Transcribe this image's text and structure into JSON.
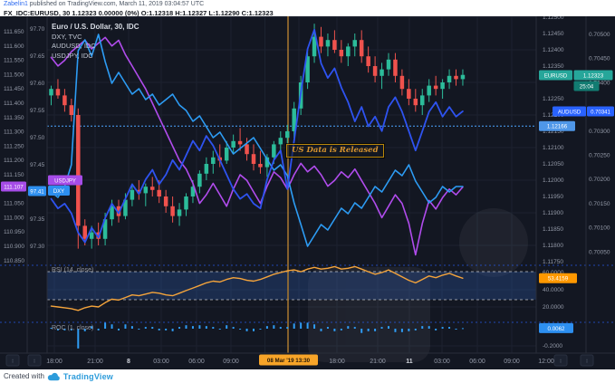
{
  "header": {
    "author": "Zabelin1",
    "published_line": " published on TradingView.com, March 11, 2019 03:04:57 UTC",
    "symbol_line": "FX_IDC:EURUSD, 30  1.12323 0.00000 (0%)  O:1.12318  H:1.12327  L:1.12290  C:1.12323"
  },
  "legend": {
    "main": "Euro / U.S. Dollar, 30, IDC",
    "overlays": [
      "DXY, TVC",
      "AUDUSD, IDC",
      "USDJPY, IDC"
    ]
  },
  "annotation": {
    "text": "US Data is Released"
  },
  "labels": {
    "eurusd_tag": "EURUSD",
    "eurusd_price": "1.12323",
    "countdown": "25:04",
    "audusd_tag": "AUDUSD",
    "audusd_price": "0.70341",
    "usdjpy_tag": "USDJPY",
    "usdjpy_price": "111.107",
    "dxy_tag": "DXY",
    "dxy_price": "97.41",
    "price_level": "1.12166",
    "rsi_label": "RSI (14, close)",
    "rsi_value": "53.4159",
    "roc_label": "ROC (1, close)",
    "roc_value": "0.0062",
    "event_time": "08 Mar '19   13:30"
  },
  "axes": {
    "usdjpy_ticks": [
      "111.650",
      "111.600",
      "111.550",
      "111.500",
      "111.450",
      "111.400",
      "111.350",
      "111.300",
      "111.250",
      "111.200",
      "111.150",
      "111.050",
      "111.000",
      "110.950",
      "110.900",
      "110.850"
    ],
    "dxy_ticks": [
      "97.70",
      "97.65",
      "97.60",
      "97.55",
      "97.50",
      "97.45",
      "97.40",
      "97.35",
      "97.30"
    ],
    "eurusd_ticks": [
      "1.12500",
      "1.12450",
      "1.12400",
      "1.12350",
      "1.12250",
      "1.12200",
      "1.12150",
      "1.12100",
      "1.12050",
      "1.12000",
      "1.11950",
      "1.11900",
      "1.11850",
      "1.11800",
      "1.11750"
    ],
    "audusd_ticks": [
      "0.70500",
      "0.70450",
      "0.70400",
      "0.70300",
      "0.70250",
      "0.70200",
      "0.70150",
      "0.70100",
      "0.70050"
    ],
    "rsi_ticks": [
      "60.0000",
      "40.0000",
      "20.0000"
    ],
    "roc_ticks": [
      "-0.2000"
    ]
  },
  "time_axis": {
    "ticks": [
      {
        "label": "18:00",
        "emph": false
      },
      {
        "label": "21:00",
        "emph": false
      },
      {
        "label": "8",
        "emph": true
      },
      {
        "label": "03:00",
        "emph": false
      },
      {
        "label": "06:00",
        "emph": false
      },
      {
        "label": "09:00",
        "emph": false
      },
      {
        "label": "18:00",
        "emph": false
      },
      {
        "label": "21:00",
        "emph": false
      },
      {
        "label": "11",
        "emph": true
      },
      {
        "label": "03:00",
        "emph": false
      },
      {
        "label": "06:00",
        "emph": false
      },
      {
        "label": "09:00",
        "emph": false
      },
      {
        "label": "12:00",
        "emph": false
      }
    ]
  },
  "footer": {
    "created_with": "Created with",
    "brand": "TradingView"
  },
  "colors": {
    "chart_bg": "#131722",
    "grid": "#1c2230",
    "axis_border": "#2a2e39",
    "tick_text": "#949aa8",
    "tick_text_emph": "#d1d4dc",
    "candle_up": "#2cbc9a",
    "candle_down": "#f0524d",
    "dxy_line": "#2d9cf4",
    "usdjpy_line": "#b14ced",
    "audusd_line": "#2e53f0",
    "eurusd_label_bg": "#26a69a",
    "countdown_bg": "#127c72",
    "audusd_label_bg": "#2962ff",
    "usdjpy_label_bg": "#a64ce8",
    "dxy_label_bg": "#2d8ff0",
    "price_level_bg": "#4f97e8",
    "rsi_line": "#f5a43b",
    "rsi_label_bg": "#ff9800",
    "roc_bar": "#2f9df5",
    "roc_label_bg": "#2d8ff0",
    "event_line": "#a9792f",
    "event_chip_bg": "#f7a428",
    "separator": "#2962ff",
    "band_fill": "rgba(44,84,158,0.35)",
    "pane_label": "#9598a1"
  },
  "chart_data": {
    "type": "candlestick+lines",
    "symbol": "FX_IDC:EURUSD",
    "timeframe": "30m",
    "event": {
      "text": "US Data is Released",
      "time": "08 Mar '19 13:30",
      "bar_index": 35
    },
    "price_level_line": 1.12166,
    "visible_ranges": {
      "EURUSD": [
        1.11739,
        1.12503
      ],
      "DXY": [
        97.265,
        97.723
      ],
      "USDJPY": [
        110.834,
        111.704
      ],
      "AUDUSD": [
        0.70022,
        0.70538
      ],
      "RSI": [
        2.1,
        68.4
      ],
      "ROC": [
        -0.284,
        0.074
      ]
    },
    "candles_ohlc": [
      [
        1.1226,
        1.1229,
        1.1223,
        1.1228
      ],
      [
        1.1228,
        1.1231,
        1.1225,
        1.1226
      ],
      [
        1.1226,
        1.1228,
        1.1221,
        1.1223
      ],
      [
        1.1223,
        1.1225,
        1.1218,
        1.122
      ],
      [
        1.122,
        1.1222,
        1.1179,
        1.1186
      ],
      [
        1.1186,
        1.1188,
        1.118,
        1.1182
      ],
      [
        1.1182,
        1.1186,
        1.1179,
        1.1184
      ],
      [
        1.1184,
        1.1187,
        1.118,
        1.1182
      ],
      [
        1.1182,
        1.119,
        1.118,
        1.1188
      ],
      [
        1.1188,
        1.1194,
        1.1186,
        1.1192
      ],
      [
        1.1192,
        1.1194,
        1.1187,
        1.1189
      ],
      [
        1.1189,
        1.1196,
        1.1188,
        1.1194
      ],
      [
        1.1194,
        1.1199,
        1.1192,
        1.1197
      ],
      [
        1.1197,
        1.12,
        1.1194,
        1.1196
      ],
      [
        1.1196,
        1.1199,
        1.1192,
        1.1198
      ],
      [
        1.1198,
        1.1201,
        1.1195,
        1.1197
      ],
      [
        1.1197,
        1.12,
        1.1193,
        1.1195
      ],
      [
        1.1195,
        1.1197,
        1.119,
        1.1192
      ],
      [
        1.1192,
        1.1195,
        1.1187,
        1.1189
      ],
      [
        1.1189,
        1.1193,
        1.1186,
        1.1191
      ],
      [
        1.1191,
        1.1196,
        1.1189,
        1.1195
      ],
      [
        1.1195,
        1.12,
        1.1193,
        1.1198
      ],
      [
        1.1198,
        1.1203,
        1.1196,
        1.1202
      ],
      [
        1.1202,
        1.1207,
        1.12,
        1.1205
      ],
      [
        1.1205,
        1.1209,
        1.1202,
        1.1207
      ],
      [
        1.1207,
        1.1211,
        1.1204,
        1.1206
      ],
      [
        1.1206,
        1.1212,
        1.1205,
        1.121
      ],
      [
        1.121,
        1.1214,
        1.1208,
        1.1212
      ],
      [
        1.1212,
        1.1216,
        1.1209,
        1.1211
      ],
      [
        1.1211,
        1.1213,
        1.1206,
        1.1208
      ],
      [
        1.1208,
        1.1211,
        1.1203,
        1.1205
      ],
      [
        1.1205,
        1.1209,
        1.1202,
        1.1204
      ],
      [
        1.1204,
        1.1208,
        1.1201,
        1.1207
      ],
      [
        1.1207,
        1.1212,
        1.1205,
        1.1211
      ],
      [
        1.1211,
        1.1215,
        1.1208,
        1.1213
      ],
      [
        1.1213,
        1.1217,
        1.1211,
        1.1215
      ],
      [
        1.1215,
        1.1224,
        1.1213,
        1.1222
      ],
      [
        1.1222,
        1.1232,
        1.122,
        1.123
      ],
      [
        1.123,
        1.124,
        1.1228,
        1.1238
      ],
      [
        1.1238,
        1.1248,
        1.1236,
        1.1244
      ],
      [
        1.1244,
        1.1247,
        1.1239,
        1.1241
      ],
      [
        1.1241,
        1.1245,
        1.1238,
        1.1243
      ],
      [
        1.1243,
        1.1246,
        1.1239,
        1.124
      ],
      [
        1.124,
        1.1243,
        1.1236,
        1.1238
      ],
      [
        1.1238,
        1.1242,
        1.1235,
        1.1241
      ],
      [
        1.1241,
        1.1245,
        1.1238,
        1.1243
      ],
      [
        1.1243,
        1.1246,
        1.1236,
        1.1238
      ],
      [
        1.1238,
        1.1241,
        1.1233,
        1.1235
      ],
      [
        1.1235,
        1.1238,
        1.123,
        1.1232
      ],
      [
        1.1232,
        1.1236,
        1.1228,
        1.1234
      ],
      [
        1.1234,
        1.1239,
        1.1232,
        1.1237
      ],
      [
        1.1237,
        1.1239,
        1.123,
        1.1232
      ],
      [
        1.1232,
        1.1234,
        1.1226,
        1.1228
      ],
      [
        1.1228,
        1.1231,
        1.1223,
        1.1225
      ],
      [
        1.1225,
        1.1228,
        1.1221,
        1.1223
      ],
      [
        1.1223,
        1.1228,
        1.122,
        1.1226
      ],
      [
        1.1226,
        1.1231,
        1.1224,
        1.1229
      ],
      [
        1.1229,
        1.1232,
        1.1226,
        1.1228
      ],
      [
        1.1228,
        1.1231,
        1.1225,
        1.123
      ],
      [
        1.123,
        1.1234,
        1.1228,
        1.1232
      ],
      [
        1.1232,
        1.1234,
        1.1229,
        1.1231
      ],
      [
        1.1231,
        1.1234,
        1.1229,
        1.12323
      ]
    ],
    "series": [
      {
        "name": "DXY",
        "values": [
          97.4,
          97.39,
          97.41,
          97.45,
          97.66,
          97.68,
          97.65,
          97.69,
          97.64,
          97.6,
          97.62,
          97.6,
          97.58,
          97.59,
          97.57,
          97.58,
          97.56,
          97.57,
          97.58,
          97.56,
          97.55,
          97.53,
          97.54,
          97.52,
          97.5,
          97.51,
          97.49,
          97.47,
          97.48,
          97.49,
          97.5,
          97.48,
          97.46,
          97.44,
          97.45,
          97.43,
          97.38,
          97.34,
          97.3,
          97.32,
          97.34,
          97.33,
          97.35,
          97.37,
          97.36,
          97.38,
          97.37,
          97.39,
          97.41,
          97.4,
          97.42,
          97.44,
          97.43,
          97.45,
          97.42,
          97.4,
          97.38,
          97.39,
          97.41,
          97.4,
          97.41,
          97.41
        ]
      },
      {
        "name": "USDJPY",
        "values": [
          111.56,
          111.53,
          111.55,
          111.58,
          111.6,
          111.62,
          111.59,
          111.61,
          111.63,
          111.6,
          111.62,
          111.57,
          111.53,
          111.49,
          111.45,
          111.4,
          111.35,
          111.3,
          111.25,
          111.2,
          111.17,
          111.12,
          111.05,
          111.08,
          111.12,
          111.08,
          111.04,
          111.1,
          111.15,
          111.13,
          111.09,
          111.05,
          111.11,
          111.16,
          111.14,
          111.1,
          111.15,
          111.19,
          111.16,
          111.18,
          111.15,
          111.11,
          111.13,
          111.16,
          111.14,
          111.17,
          111.13,
          111.09,
          111.05,
          111.0,
          111.04,
          111.08,
          111.05,
          110.98,
          110.87,
          110.98,
          111.06,
          111.03,
          111.07,
          111.1,
          111.08,
          111.107
        ]
      },
      {
        "name": "AUDUSD",
        "values": [
          0.7016,
          0.7014,
          0.7015,
          0.7013,
          0.7009,
          0.7007,
          0.701,
          0.7008,
          0.7012,
          0.7015,
          0.7013,
          0.7016,
          0.7019,
          0.7017,
          0.702,
          0.7022,
          0.7019,
          0.7021,
          0.7024,
          0.7022,
          0.7025,
          0.7028,
          0.7026,
          0.7029,
          0.7027,
          0.7024,
          0.7021,
          0.7018,
          0.7016,
          0.7017,
          0.7015,
          0.7014,
          0.702,
          0.7024,
          0.7026,
          0.7018,
          0.7028,
          0.7038,
          0.7047,
          0.7051,
          0.7044,
          0.7041,
          0.7043,
          0.7039,
          0.7036,
          0.7032,
          0.7035,
          0.7031,
          0.7033,
          0.703,
          0.7035,
          0.7037,
          0.7034,
          0.703,
          0.7026,
          0.703,
          0.7034,
          0.7036,
          0.7033,
          0.7035,
          0.7033,
          0.70341
        ]
      },
      {
        "name": "RSI(14)",
        "pane": "rsi",
        "values": [
          21,
          20,
          19,
          18,
          16,
          19,
          21,
          20,
          25,
          29,
          28,
          31,
          34,
          33,
          35,
          37,
          36,
          34,
          33,
          36,
          39,
          42,
          45,
          48,
          50,
          49,
          52,
          54,
          53,
          51,
          50,
          52,
          55,
          58,
          60,
          62,
          63,
          61,
          64,
          66,
          64,
          65,
          67,
          64,
          65,
          67,
          64,
          61,
          58,
          60,
          63,
          59,
          55,
          51,
          48,
          52,
          56,
          54,
          57,
          59,
          56,
          53.4159
        ]
      },
      {
        "name": "ROC(1)",
        "pane": "roc",
        "values": [
          0.01,
          -0.02,
          -0.02,
          -0.02,
          -0.23,
          -0.03,
          0.03,
          -0.02,
          0.07,
          0.05,
          -0.02,
          0.05,
          0.03,
          -0.01,
          0.02,
          0.02,
          -0.02,
          -0.02,
          -0.03,
          0.02,
          0.04,
          0.03,
          0.04,
          0.03,
          0.02,
          -0.01,
          0.04,
          0.02,
          -0.01,
          -0.03,
          -0.03,
          -0.01,
          0.03,
          0.04,
          0.02,
          0.02,
          0.06,
          0.07,
          0.07,
          0.05,
          -0.03,
          0.02,
          -0.03,
          -0.02,
          0.03,
          0.02,
          -0.05,
          -0.03,
          -0.03,
          0.02,
          0.03,
          -0.04,
          -0.04,
          -0.03,
          -0.02,
          0.03,
          0.03,
          -0.02,
          0.02,
          0.02,
          -0.01,
          0.0062
        ]
      }
    ]
  }
}
